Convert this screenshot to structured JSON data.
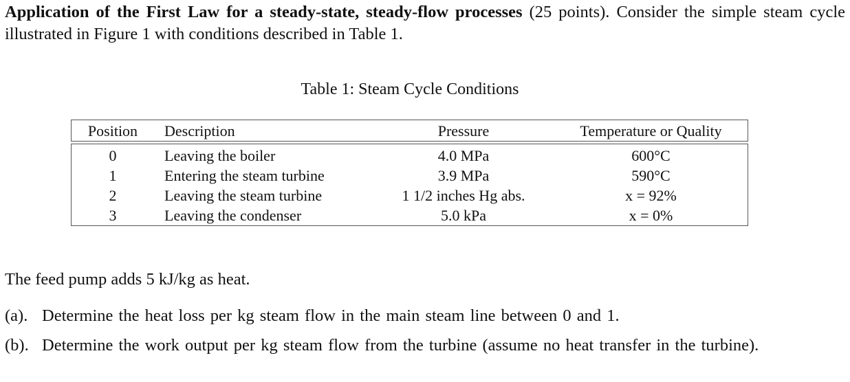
{
  "intro": {
    "bold_title": "Application of the First Law for a steady-state, steady-flow processes",
    "points": " (25 points).",
    "rest": " Consider the simple steam cycle illustrated in Figure 1 with conditions described in Table 1."
  },
  "table": {
    "caption": "Table 1: Steam Cycle Conditions",
    "headers": {
      "position": "Position",
      "description": "Description",
      "pressure": "Pressure",
      "temperature_or_quality": "Temperature or Quality"
    },
    "rows": [
      {
        "position": "0",
        "description": "Leaving the boiler",
        "pressure": "4.0 MPa",
        "temperature_or_quality": "600°C"
      },
      {
        "position": "1",
        "description": "Entering the steam turbine",
        "pressure": "3.9 MPa",
        "temperature_or_quality": "590°C"
      },
      {
        "position": "2",
        "description": "Leaving the steam turbine",
        "pressure": "1 1/2 inches Hg abs.",
        "temperature_or_quality": "x = 92%"
      },
      {
        "position": "3",
        "description": "Leaving the condenser",
        "pressure": "5.0 kPa",
        "temperature_or_quality": "x = 0%"
      }
    ]
  },
  "feed_pump_note": "The feed pump adds 5 kJ/kg as heat.",
  "questions": [
    {
      "label": "(a).",
      "text": "Determine the heat loss per kg steam flow in the main steam line between 0 and 1."
    },
    {
      "label": "(b).",
      "text": "Determine the work output per kg steam flow from the turbine (assume no heat transfer in the turbine)."
    }
  ]
}
